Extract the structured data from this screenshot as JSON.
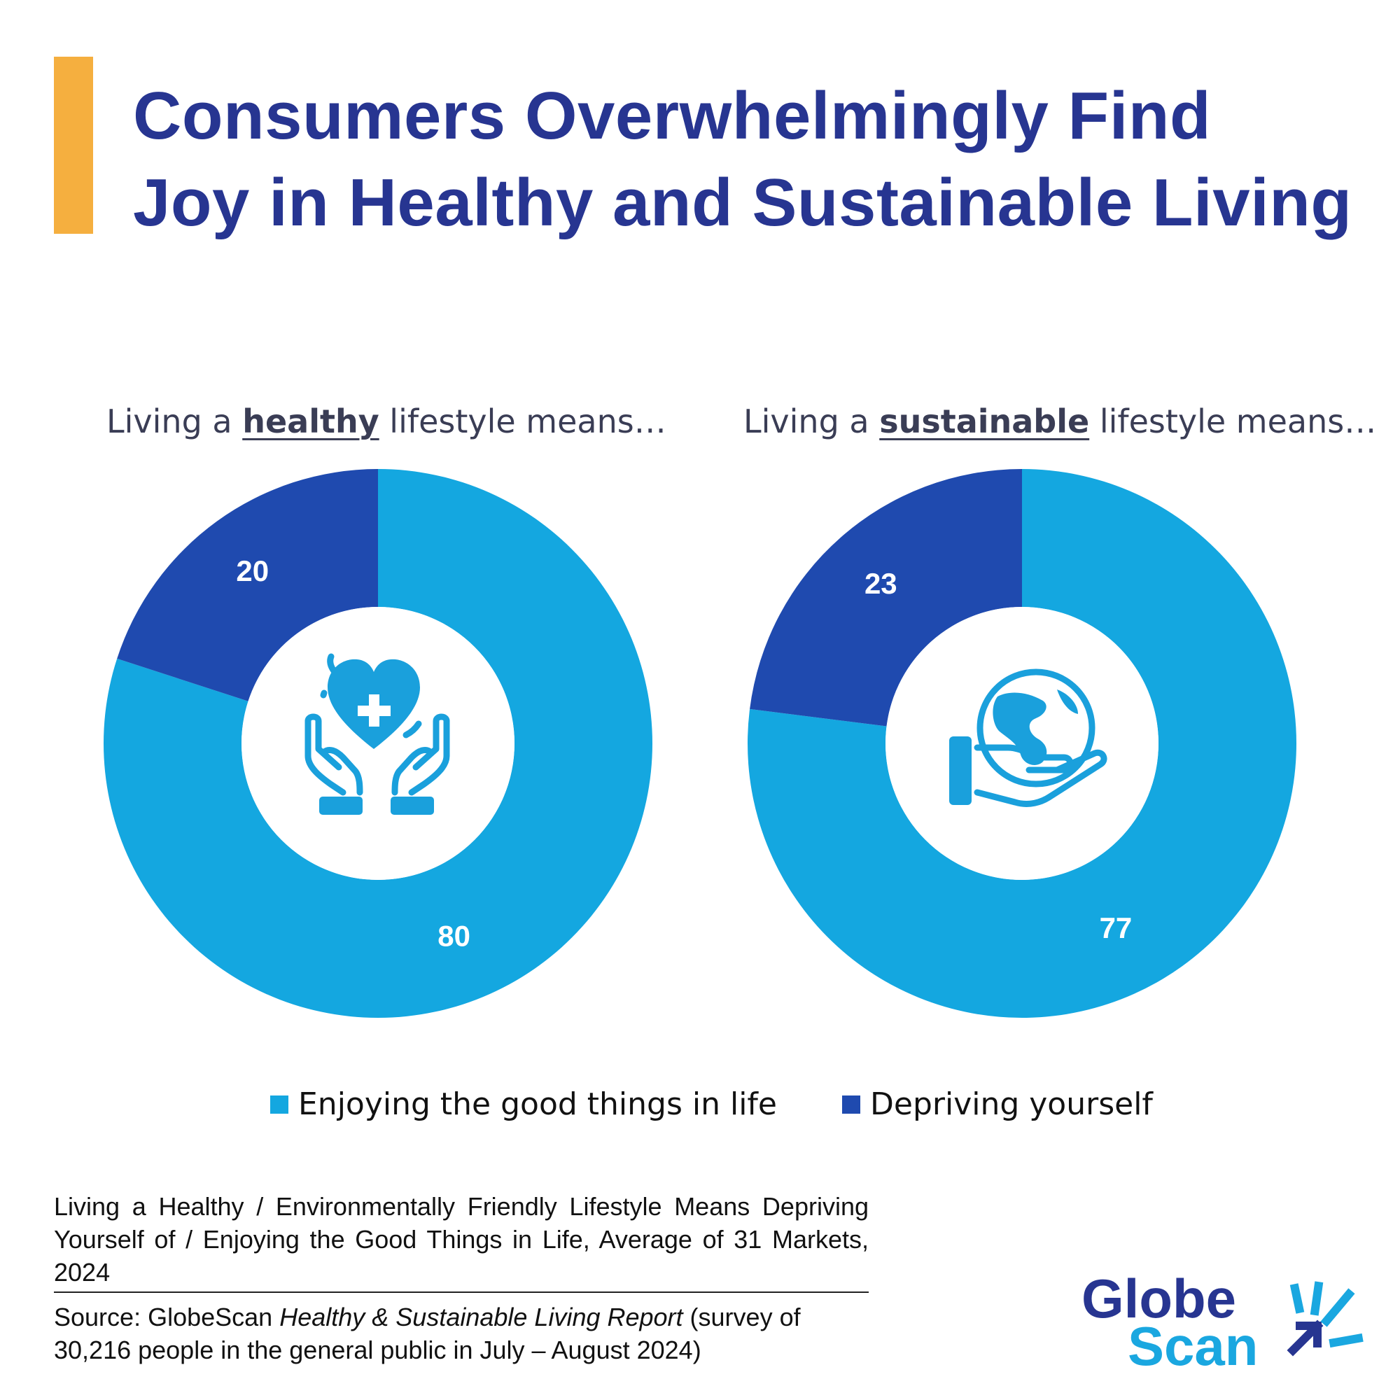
{
  "title": {
    "line1": "Consumers Overwhelmingly Find",
    "line2": "Joy in Healthy and Sustainable Living"
  },
  "colors": {
    "enjoy": "#14A7E0",
    "deprive": "#1F4AAF",
    "accent": "#F5AF3F",
    "title": "#273591"
  },
  "chart_data": [
    {
      "type": "pie",
      "subtitle": {
        "pre": "Living a ",
        "bold": "healthy",
        "post": " lifestyle means…"
      },
      "categories": [
        "Enjoying the good things in life",
        "Depriving yourself"
      ],
      "values": [
        80,
        20
      ],
      "center_icon": "hands-heart-icon"
    },
    {
      "type": "pie",
      "subtitle": {
        "pre": "Living a ",
        "bold": "sustainable",
        "post": " lifestyle means…"
      },
      "categories": [
        "Enjoying the good things in life",
        "Depriving yourself"
      ],
      "values": [
        77,
        23
      ],
      "center_icon": "hand-globe-icon"
    }
  ],
  "legend": [
    {
      "label": "Enjoying the good things in life"
    },
    {
      "label": "Depriving yourself"
    }
  ],
  "note": "Living a Healthy / Environmentally Friendly Lifestyle Means Depriving Yourself of / Enjoying the Good Things in Life, Average of 31 Markets, 2024",
  "source": {
    "pre": "Source: GlobeScan ",
    "italic": "Healthy & Sustainable Living Report",
    "post": " (survey of 30,216 people in the general public in July – August 2024)"
  },
  "logo": {
    "line1": "Globe",
    "line2": "Scan"
  }
}
